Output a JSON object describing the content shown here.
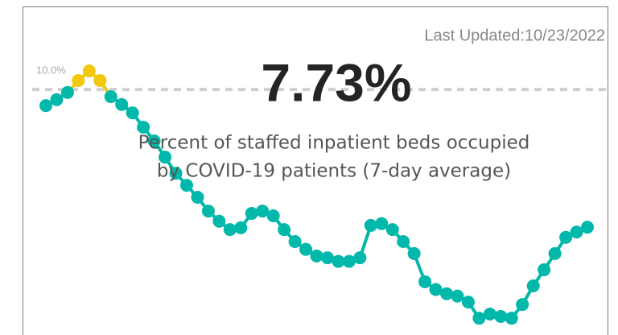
{
  "chart_data": {
    "type": "line",
    "last_updated": "Last Updated:10/23/2022",
    "headline": {
      "value": 7.73,
      "label": "7.73%"
    },
    "description": [
      "Percent of staffed inpatient beds occupied",
      "by COVID-19 patients (7-day average)"
    ],
    "reference_line": {
      "value": 10.0,
      "label": "10.0%"
    },
    "color": "#01b8aa",
    "above_reference_color": "#f2c80f",
    "ylim": [
      5.9,
      11.4
    ],
    "values": [
      9.73,
      9.83,
      9.95,
      10.15,
      10.31,
      10.15,
      9.88,
      9.75,
      9.61,
      9.37,
      9.14,
      8.87,
      8.6,
      8.4,
      8.2,
      7.97,
      7.8,
      7.66,
      7.69,
      7.93,
      7.97,
      7.89,
      7.66,
      7.46,
      7.33,
      7.22,
      7.19,
      7.13,
      7.13,
      7.19,
      7.73,
      7.76,
      7.66,
      7.46,
      7.26,
      6.79,
      6.66,
      6.59,
      6.55,
      6.45,
      6.18,
      6.25,
      6.21,
      6.18,
      6.41,
      6.72,
      6.99,
      7.26,
      7.53,
      7.62,
      7.7
    ]
  }
}
